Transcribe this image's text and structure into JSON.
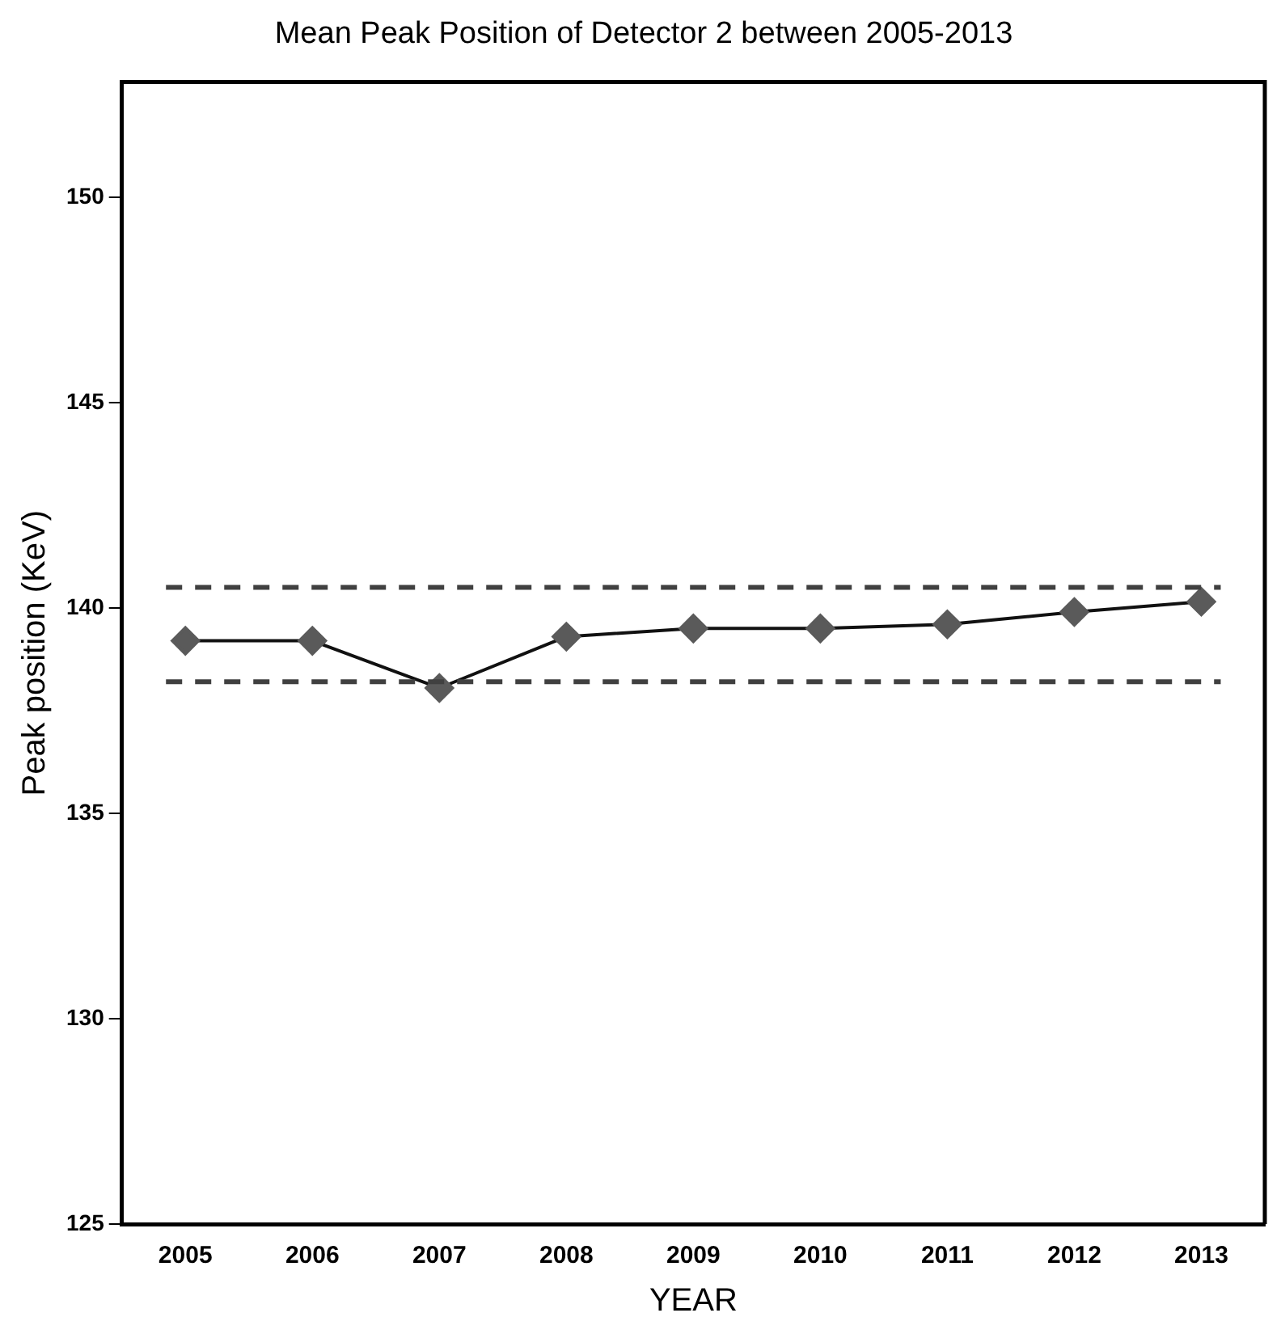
{
  "chart_data": {
    "type": "line",
    "title": "Mean Peak Position of Detector 2 between 2005-2013",
    "xlabel": "YEAR",
    "ylabel": "Peak position (KeV)",
    "categories": [
      "2005",
      "2006",
      "2007",
      "2008",
      "2009",
      "2010",
      "2011",
      "2012",
      "2013"
    ],
    "series": [
      {
        "color": "#5a5a5a",
        "values": [
          139.2,
          139.2,
          138.05,
          139.3,
          139.5,
          139.5,
          139.6,
          139.9,
          140.15
        ]
      }
    ],
    "ylim": [
      125,
      152.8
    ],
    "yticks": [
      125,
      130,
      135,
      140,
      145,
      150
    ],
    "ref_lines": [
      {
        "axis": "y",
        "value": 140.5,
        "color": "#404040",
        "line_style": "dashed"
      },
      {
        "axis": "y",
        "value": 138.2,
        "color": "#404040",
        "line_style": "dashed"
      }
    ],
    "grid": false,
    "legend": false,
    "marker": "diamond",
    "line_style": "solid"
  }
}
